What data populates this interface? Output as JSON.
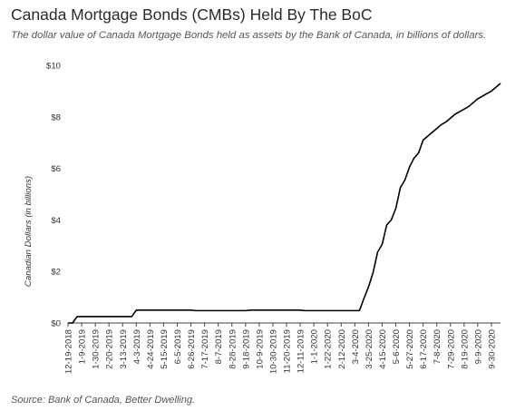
{
  "chart_data": {
    "type": "line",
    "title": "Canada Mortgage Bonds (CMBs) Held By The BoC",
    "subtitle": "The dollar value of Canada Mortgage Bonds held as assets by the Bank of Canada, in billions of dollars.",
    "source": "Source: Bank of Canada, Better Dwelling.",
    "ylabel": "Canadian Dollars (in billions)",
    "xlabel": "",
    "ylim": [
      0,
      10
    ],
    "yticks": [
      {
        "value": 0,
        "label": "$0"
      },
      {
        "value": 2,
        "label": "$2"
      },
      {
        "value": 4,
        "label": "$4"
      },
      {
        "value": 6,
        "label": "$6"
      },
      {
        "value": 8,
        "label": "$8"
      },
      {
        "value": 10,
        "label": "$10"
      }
    ],
    "xlim": [
      "2018-12-19",
      "2020-10-14"
    ],
    "xticks": [
      {
        "date": "2018-12-19",
        "label": "12-19-2018"
      },
      {
        "date": "2019-01-09",
        "label": "1-9-2019"
      },
      {
        "date": "2019-01-30",
        "label": "1-30-2019"
      },
      {
        "date": "2019-02-20",
        "label": "2-20-2019"
      },
      {
        "date": "2019-03-13",
        "label": "3-13-2019"
      },
      {
        "date": "2019-04-03",
        "label": "4-3-2019"
      },
      {
        "date": "2019-04-24",
        "label": "4-24-2019"
      },
      {
        "date": "2019-05-15",
        "label": "5-15-2019"
      },
      {
        "date": "2019-06-05",
        "label": "6-5-2019"
      },
      {
        "date": "2019-06-26",
        "label": "6-26-2019"
      },
      {
        "date": "2019-07-17",
        "label": "7-17-2019"
      },
      {
        "date": "2019-08-07",
        "label": "8-7-2019"
      },
      {
        "date": "2019-08-28",
        "label": "8-28-2019"
      },
      {
        "date": "2019-09-18",
        "label": "9-18-2019"
      },
      {
        "date": "2019-10-09",
        "label": "10-9-2019"
      },
      {
        "date": "2019-10-30",
        "label": "10-30-2019"
      },
      {
        "date": "2019-11-20",
        "label": "11-20-2019"
      },
      {
        "date": "2019-12-11",
        "label": "12-11-2019"
      },
      {
        "date": "2020-01-01",
        "label": "1-1-2020"
      },
      {
        "date": "2020-01-22",
        "label": "1-22-2020"
      },
      {
        "date": "2020-02-12",
        "label": "2-12-2020"
      },
      {
        "date": "2020-03-04",
        "label": "3-4-2020"
      },
      {
        "date": "2020-03-25",
        "label": "3-25-2020"
      },
      {
        "date": "2020-04-15",
        "label": "4-15-2020"
      },
      {
        "date": "2020-05-06",
        "label": "5-6-2020"
      },
      {
        "date": "2020-05-27",
        "label": "5-27-2020"
      },
      {
        "date": "2020-06-17",
        "label": "6-17-2020"
      },
      {
        "date": "2020-07-08",
        "label": "7-8-2020"
      },
      {
        "date": "2020-07-29",
        "label": "7-29-2020"
      },
      {
        "date": "2020-08-19",
        "label": "8-19-2020"
      },
      {
        "date": "2020-09-09",
        "label": "9-9-2020"
      },
      {
        "date": "2020-09-30",
        "label": "9-30-2020"
      }
    ],
    "grid": false,
    "series": [
      {
        "color": "#000000",
        "points": [
          {
            "x": "2018-12-19",
            "y": 0.0
          },
          {
            "x": "2018-12-26",
            "y": 0.0
          },
          {
            "x": "2019-01-02",
            "y": 0.25
          },
          {
            "x": "2019-03-27",
            "y": 0.25
          },
          {
            "x": "2019-04-03",
            "y": 0.5
          },
          {
            "x": "2019-06-26",
            "y": 0.5
          },
          {
            "x": "2019-07-03",
            "y": 0.48
          },
          {
            "x": "2019-09-18",
            "y": 0.48
          },
          {
            "x": "2019-09-25",
            "y": 0.5
          },
          {
            "x": "2019-12-11",
            "y": 0.5
          },
          {
            "x": "2019-12-18",
            "y": 0.48
          },
          {
            "x": "2020-03-11",
            "y": 0.48
          },
          {
            "x": "2020-03-18",
            "y": 0.95
          },
          {
            "x": "2020-03-25",
            "y": 1.4
          },
          {
            "x": "2020-04-01",
            "y": 1.95
          },
          {
            "x": "2020-04-08",
            "y": 2.75
          },
          {
            "x": "2020-04-15",
            "y": 3.05
          },
          {
            "x": "2020-04-22",
            "y": 3.8
          },
          {
            "x": "2020-04-29",
            "y": 4.0
          },
          {
            "x": "2020-05-06",
            "y": 4.45
          },
          {
            "x": "2020-05-13",
            "y": 5.25
          },
          {
            "x": "2020-05-20",
            "y": 5.55
          },
          {
            "x": "2020-05-27",
            "y": 6.05
          },
          {
            "x": "2020-06-03",
            "y": 6.4
          },
          {
            "x": "2020-06-10",
            "y": 6.6
          },
          {
            "x": "2020-06-17",
            "y": 7.1
          },
          {
            "x": "2020-06-24",
            "y": 7.25
          },
          {
            "x": "2020-07-01",
            "y": 7.4
          },
          {
            "x": "2020-07-08",
            "y": 7.55
          },
          {
            "x": "2020-07-15",
            "y": 7.7
          },
          {
            "x": "2020-07-22",
            "y": 7.8
          },
          {
            "x": "2020-07-29",
            "y": 7.95
          },
          {
            "x": "2020-08-05",
            "y": 8.1
          },
          {
            "x": "2020-08-12",
            "y": 8.2
          },
          {
            "x": "2020-08-19",
            "y": 8.3
          },
          {
            "x": "2020-08-26",
            "y": 8.4
          },
          {
            "x": "2020-09-02",
            "y": 8.55
          },
          {
            "x": "2020-09-09",
            "y": 8.7
          },
          {
            "x": "2020-09-16",
            "y": 8.8
          },
          {
            "x": "2020-09-23",
            "y": 8.9
          },
          {
            "x": "2020-09-30",
            "y": 9.0
          },
          {
            "x": "2020-10-07",
            "y": 9.15
          },
          {
            "x": "2020-10-14",
            "y": 9.3
          }
        ]
      }
    ]
  }
}
